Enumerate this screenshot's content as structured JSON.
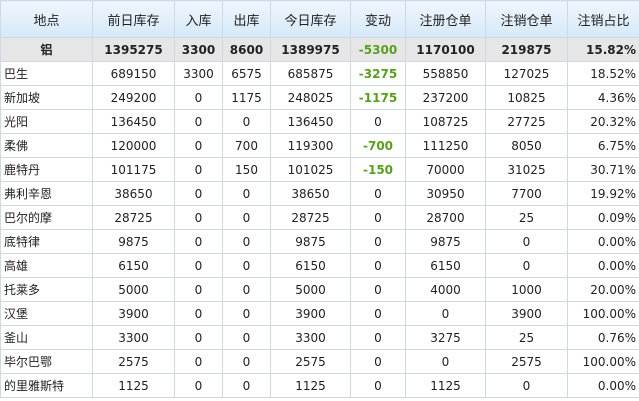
{
  "table": {
    "header": [
      "地点",
      "前日库存",
      "入库",
      "出库",
      "今日库存",
      "变动",
      "注册仓单",
      "注销仓单",
      "注销占比"
    ],
    "rows": [
      [
        "铝",
        "1395275",
        "3300",
        "8600",
        "1389975",
        "-5300",
        "1170100",
        "219875",
        "15.82%"
      ],
      [
        "巴生",
        "689150",
        "3300",
        "6575",
        "685875",
        "-3275",
        "558850",
        "127025",
        "18.52%"
      ],
      [
        "新加坡",
        "249200",
        "0",
        "1175",
        "248025",
        "-1175",
        "237200",
        "10825",
        "4.36%"
      ],
      [
        "光阳",
        "136450",
        "0",
        "0",
        "136450",
        "0",
        "108725",
        "27725",
        "20.32%"
      ],
      [
        "柔佛",
        "120000",
        "0",
        "700",
        "119300",
        "-700",
        "111250",
        "8050",
        "6.75%"
      ],
      [
        "鹿特丹",
        "101175",
        "0",
        "150",
        "101025",
        "-150",
        "70000",
        "31025",
        "30.71%"
      ],
      [
        "弗利辛恩",
        "38650",
        "0",
        "0",
        "38650",
        "0",
        "30950",
        "7700",
        "19.92%"
      ],
      [
        "巴尔的摩",
        "28725",
        "0",
        "0",
        "28725",
        "0",
        "28700",
        "25",
        "0.09%"
      ],
      [
        "底特律",
        "9875",
        "0",
        "0",
        "9875",
        "0",
        "9875",
        "0",
        "0.00%"
      ],
      [
        "高雄",
        "6150",
        "0",
        "0",
        "6150",
        "0",
        "6150",
        "0",
        "0.00%"
      ],
      [
        "托莱多",
        "5000",
        "0",
        "0",
        "5000",
        "0",
        "4000",
        "1000",
        "20.00%"
      ],
      [
        "汉堡",
        "3900",
        "0",
        "0",
        "3900",
        "0",
        "0",
        "3900",
        "100.00%"
      ],
      [
        "釜山",
        "3300",
        "0",
        "0",
        "3300",
        "0",
        "3275",
        "25",
        "0.76%"
      ],
      [
        "毕尔巴鄂",
        "2575",
        "0",
        "0",
        "2575",
        "0",
        "0",
        "2575",
        "100.00%"
      ],
      [
        "的里雅斯特",
        "1125",
        "0",
        "0",
        "1125",
        "0",
        "1125",
        "0",
        "0.00%"
      ]
    ]
  }
}
